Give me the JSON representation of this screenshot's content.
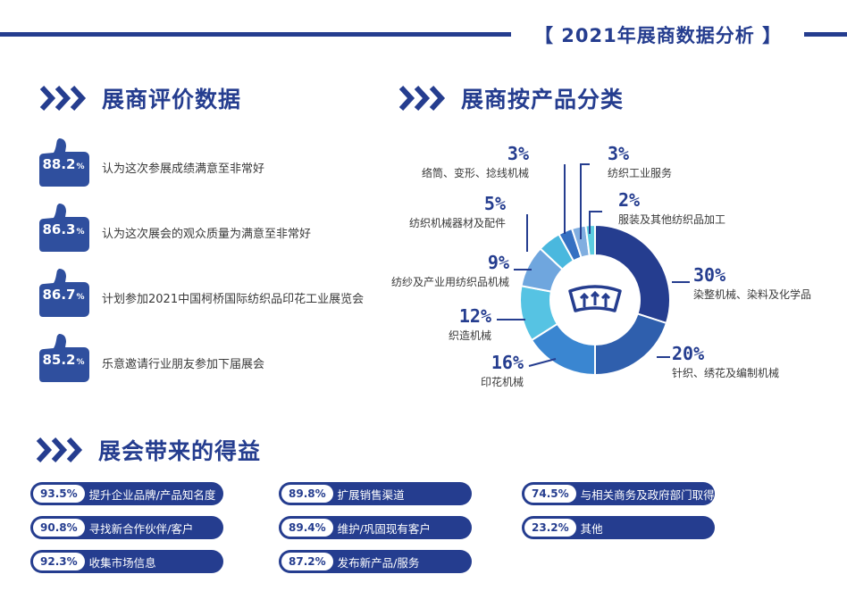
{
  "header": {
    "title": "【 2021年展商数据分析 】"
  },
  "sections": {
    "evaluation": {
      "title": "展商评价数据"
    },
    "category": {
      "title": "展商按产品分类"
    },
    "benefits": {
      "title": "展会带来的得益"
    }
  },
  "evaluation_items": [
    {
      "value": "88.2",
      "unit": "%",
      "text": "认为这次参展成绩满意至非常好"
    },
    {
      "value": "86.3",
      "unit": "%",
      "text": "认为这次展会的观众质量为满意至非常好"
    },
    {
      "value": "86.7",
      "unit": "%",
      "text": "计划参加2021中国柯桥国际纺织品印花工业展览会"
    },
    {
      "value": "85.2",
      "unit": "%",
      "text": "乐意邀请行业朋友参加下届展会"
    }
  ],
  "chart_data": {
    "type": "pie",
    "title": "展商按产品分类",
    "slices": [
      {
        "label": "染整机械、染料及化学品",
        "value": 30,
        "display": "30%",
        "color": "#253d8f"
      },
      {
        "label": "针织、绣花及编制机械",
        "value": 20,
        "display": "20%",
        "color": "#2f5fad"
      },
      {
        "label": "印花机械",
        "value": 16,
        "display": "16%",
        "color": "#3a86d1"
      },
      {
        "label": "织造机械",
        "value": 12,
        "display": "12%",
        "color": "#56c3e3"
      },
      {
        "label": "纺纱及产业用纺织品机械",
        "value": 9,
        "display": "9%",
        "color": "#6fa6de"
      },
      {
        "label": "纺织机械器材及配件",
        "value": 5,
        "display": "5%",
        "color": "#4ab8de"
      },
      {
        "label": "络筒、变形、捻线机械",
        "value": 3,
        "display": "3%",
        "color": "#3570c2"
      },
      {
        "label": "纺织工业服务",
        "value": 3,
        "display": "3%",
        "color": "#80aee0"
      },
      {
        "label": "服装及其他纺织品加工",
        "value": 2,
        "display": "2%",
        "color": "#5ccde0"
      }
    ]
  },
  "benefit_items": [
    {
      "value": "93.5%",
      "text": "提升企业品牌/产品知名度"
    },
    {
      "value": "90.8%",
      "text": "寻找新合作伙伴/客户"
    },
    {
      "value": "92.3%",
      "text": "收集市场信息"
    },
    {
      "value": "89.8%",
      "text": "扩展销售渠道"
    },
    {
      "value": "89.4%",
      "text": "维护/巩固现有客户"
    },
    {
      "value": "87.2%",
      "text": "发布新产品/服务"
    },
    {
      "value": "74.5%",
      "text": "与相关商务及政府部门取得联"
    },
    {
      "value": "23.2%",
      "text": "其他"
    }
  ],
  "colors": {
    "brand": "#253d8f"
  },
  "icons": {
    "section_marker": "triple-chevron-icon",
    "evaluation": "thumbs-up-icon",
    "chart_center": "defrost-icon"
  }
}
